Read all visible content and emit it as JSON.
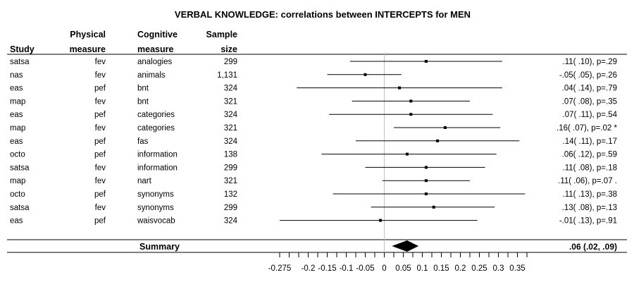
{
  "chart_data": {
    "type": "forest",
    "title": "VERBAL KNOWLEDGE: correlations between INTERCEPTS for MEN",
    "columns": [
      {
        "key": "study",
        "label1": "",
        "label2": "Study"
      },
      {
        "key": "physical",
        "label1": "Physical",
        "label2": "measure"
      },
      {
        "key": "cognitive",
        "label1": "Cognitive",
        "label2": "measure"
      },
      {
        "key": "n",
        "label1": "Sample",
        "label2": "size"
      }
    ],
    "rows": [
      {
        "study": "satsa",
        "physical": "fev",
        "cognitive": "analogies",
        "n": "299",
        "est": 0.11,
        "lo": -0.09,
        "hi": 0.31,
        "stat": ".11( .10), p=.29"
      },
      {
        "study": "nas",
        "physical": "fev",
        "cognitive": "animals",
        "n": "1,131",
        "est": -0.05,
        "lo": -0.15,
        "hi": 0.045,
        "stat": "-.05( .05), p=.26"
      },
      {
        "study": "eas",
        "physical": "pef",
        "cognitive": "bnt",
        "n": "324",
        "est": 0.04,
        "lo": -0.23,
        "hi": 0.31,
        "stat": ".04( .14), p=.79"
      },
      {
        "study": "map",
        "physical": "fev",
        "cognitive": "bnt",
        "n": "321",
        "est": 0.07,
        "lo": -0.085,
        "hi": 0.225,
        "stat": ".07( .08), p=.35"
      },
      {
        "study": "eas",
        "physical": "pef",
        "cognitive": "categories",
        "n": "324",
        "est": 0.07,
        "lo": -0.145,
        "hi": 0.285,
        "stat": ".07( .11), p=.54"
      },
      {
        "study": "map",
        "physical": "fev",
        "cognitive": "categories",
        "n": "321",
        "est": 0.16,
        "lo": 0.025,
        "hi": 0.305,
        "stat": ".16( .07), p=.02 *"
      },
      {
        "study": "eas",
        "physical": "pef",
        "cognitive": "fas",
        "n": "324",
        "est": 0.14,
        "lo": -0.075,
        "hi": 0.355,
        "stat": ".14( .11), p=.17"
      },
      {
        "study": "octo",
        "physical": "pef",
        "cognitive": "information",
        "n": "138",
        "est": 0.06,
        "lo": -0.165,
        "hi": 0.295,
        "stat": ".06( .12), p=.59"
      },
      {
        "study": "satsa",
        "physical": "fev",
        "cognitive": "information",
        "n": "299",
        "est": 0.11,
        "lo": -0.05,
        "hi": 0.265,
        "stat": ".11( .08), p=.18"
      },
      {
        "study": "map",
        "physical": "fev",
        "cognitive": "nart",
        "n": "321",
        "est": 0.11,
        "lo": -0.005,
        "hi": 0.225,
        "stat": ".11( .06), p=.07 ."
      },
      {
        "study": "octo",
        "physical": "pef",
        "cognitive": "synonyms",
        "n": "132",
        "est": 0.11,
        "lo": -0.135,
        "hi": 0.37,
        "stat": ".11( .13), p=.38"
      },
      {
        "study": "satsa",
        "physical": "fev",
        "cognitive": "synonyms",
        "n": "299",
        "est": 0.13,
        "lo": -0.035,
        "hi": 0.29,
        "stat": ".13( .08), p=.13"
      },
      {
        "study": "eas",
        "physical": "pef",
        "cognitive": "waisvocab",
        "n": "324",
        "est": -0.01,
        "lo": -0.275,
        "hi": 0.245,
        "stat": "-.01( .13), p=.91"
      }
    ],
    "summary": {
      "label": "Summary",
      "est": 0.06,
      "lo": 0.02,
      "hi": 0.09,
      "stat": ".06 (.02, .09)"
    },
    "x_ticks": [
      -0.275,
      -0.2,
      -0.15,
      -0.1,
      -0.05,
      0,
      0.05,
      0.1,
      0.15,
      0.2,
      0.25,
      0.3,
      0.35
    ],
    "x_minor_step": 0.025,
    "xlim": [
      -0.275,
      0.375
    ],
    "reference_line": 0
  }
}
